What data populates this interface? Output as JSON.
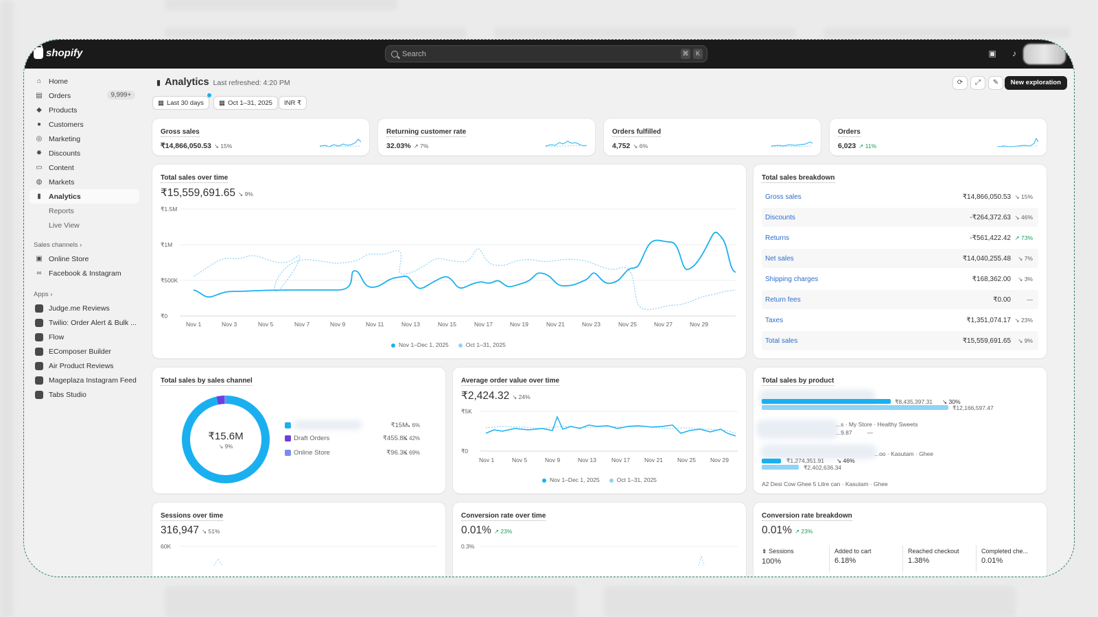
{
  "app": {
    "brand": "shopify"
  },
  "search": {
    "placeholder": "Search",
    "kbd1": "⌘",
    "kbd2": "K"
  },
  "sidebar": {
    "items": [
      {
        "label": "Home",
        "icon": "home-icon"
      },
      {
        "label": "Orders",
        "icon": "orders-icon",
        "badge": "9,999+"
      },
      {
        "label": "Products",
        "icon": "tag-icon"
      },
      {
        "label": "Customers",
        "icon": "person-icon"
      },
      {
        "label": "Marketing",
        "icon": "target-icon"
      },
      {
        "label": "Discounts",
        "icon": "discount-icon"
      },
      {
        "label": "Content",
        "icon": "content-icon"
      },
      {
        "label": "Markets",
        "icon": "globe-icon"
      },
      {
        "label": "Analytics",
        "icon": "chart-icon"
      },
      {
        "label": "Reports"
      },
      {
        "label": "Live View"
      }
    ],
    "sales_channels_label": "Sales channels",
    "channels": [
      "Online Store",
      "Facebook & Instagram"
    ],
    "apps_label": "Apps",
    "apps": [
      "Judge.me Reviews",
      "Twilio: Order Alert & Bulk ...",
      "Flow",
      "EComposer Builder",
      "Air Product Reviews",
      "Mageplaza Instagram Feed",
      "Tabs Studio"
    ]
  },
  "page": {
    "title": "Analytics",
    "subtitle": "Last refreshed: 4:20 PM",
    "new_button": "New exploration",
    "filters": [
      "Last 30 days",
      "Oct 1–31, 2025",
      "INR ₹"
    ]
  },
  "kpis": [
    {
      "title": "Gross sales",
      "value": "₹14,866,050.53",
      "change": "↘ 15%",
      "dir": "down"
    },
    {
      "title": "Returning customer rate",
      "value": "32.03%",
      "change": "↗ 7%",
      "dir": "flat"
    },
    {
      "title": "Orders fulfilled",
      "value": "4,752",
      "change": "↘ 6%",
      "dir": "down"
    },
    {
      "title": "Orders",
      "value": "6,023",
      "change": "↗ 11%",
      "dir": "up"
    }
  ],
  "total_sales": {
    "title": "Total sales over time",
    "value": "₹15,559,691.65",
    "change": "↘ 9%",
    "y_ticks": [
      "₹1.5M",
      "₹1M",
      "₹500K",
      "₹0"
    ],
    "x_ticks": [
      "Nov 1",
      "Nov 3",
      "Nov 5",
      "Nov 7",
      "Nov 9",
      "Nov 11",
      "Nov 13",
      "Nov 15",
      "Nov 17",
      "Nov 19",
      "Nov 21",
      "Nov 23",
      "Nov 25",
      "Nov 27",
      "Nov 29"
    ],
    "legend": [
      "Nov 1–Dec 1, 2025",
      "Oct 1–31, 2025"
    ]
  },
  "breakdown": {
    "title": "Total sales breakdown",
    "rows": [
      {
        "label": "Gross sales",
        "value": "₹14,866,050.53",
        "change": "↘ 15%",
        "dir": "down"
      },
      {
        "label": "Discounts",
        "value": "-₹264,372.63",
        "change": "↘ 46%",
        "dir": "down"
      },
      {
        "label": "Returns",
        "value": "-₹561,422.42",
        "change": "↗ 73%",
        "dir": "up"
      },
      {
        "label": "Net sales",
        "value": "₹14,040,255.48",
        "change": "↘ 7%",
        "dir": "down"
      },
      {
        "label": "Shipping charges",
        "value": "₹168,362.00",
        "change": "↘ 3%",
        "dir": "down"
      },
      {
        "label": "Return fees",
        "value": "₹0.00",
        "change": "—",
        "dir": "flat"
      },
      {
        "label": "Taxes",
        "value": "₹1,351,074.17",
        "change": "↘ 23%",
        "dir": "down"
      },
      {
        "label": "Total sales",
        "value": "₹15,559,691.65",
        "change": "↘ 9%",
        "dir": "down"
      }
    ]
  },
  "channel": {
    "title": "Total sales by sales channel",
    "center_value": "₹15.6M",
    "center_change": "↘ 9%",
    "items": [
      {
        "label": "",
        "value": "₹15M",
        "change": "↘ 6%",
        "color": "#1ab0f0"
      },
      {
        "label": "Draft Orders",
        "value": "₹455.8K",
        "change": "↘ 42%",
        "color": "#6d3fdc"
      },
      {
        "label": "Online Store",
        "value": "₹96.3K",
        "change": "↘ 69%",
        "color": "#7a8cf0"
      }
    ]
  },
  "aov": {
    "title": "Average order value over time",
    "value": "₹2,424.32",
    "change": "↘ 24%",
    "y_ticks": [
      "₹5K",
      "₹0"
    ],
    "x_ticks": [
      "Nov 1",
      "Nov 5",
      "Nov 9",
      "Nov 13",
      "Nov 17",
      "Nov 21",
      "Nov 25",
      "Nov 29"
    ],
    "legend": [
      "Nov 1–Dec 1, 2025",
      "Oct 1–31, 2025"
    ]
  },
  "by_product": {
    "title": "Total sales by product",
    "row1_value": "₹8,435,397.31",
    "row1_change": "↘ 30%",
    "row1_prev": "₹12,166,597.47",
    "row2_label": "...s · My Store · Healthy Sweets",
    "row2_value": "...9.87",
    "row2_change": "—",
    "row3_label": "...oo · Kasutam · Ghee",
    "row3_value": "₹1,274,351.91",
    "row3_change": "↘ 46%",
    "row3_prev": "₹2,402,636.34",
    "row4_label": "A2 Desi Cow Ghee 5 Litre can · Kasutam · Ghee"
  },
  "sessions": {
    "title": "Sessions over time",
    "value": "316,947",
    "change": "↘ 51%",
    "y_tick": "60K"
  },
  "conversion": {
    "title": "Conversion rate over time",
    "value": "0.01%",
    "change": "↗ 23%",
    "y_tick": "0.3%"
  },
  "conv_breakdown": {
    "title": "Conversion rate breakdown",
    "value": "0.01%",
    "change": "↗ 23%",
    "steps": [
      {
        "label": "Sessions",
        "pct": "100%"
      },
      {
        "label": "Added to cart",
        "pct": "6.18%"
      },
      {
        "label": "Reached checkout",
        "pct": "1.38%"
      },
      {
        "label": "Completed che...",
        "pct": "0.01%"
      }
    ]
  },
  "colors": {
    "primary": "#1ab0f0",
    "previous": "#8fd3f5",
    "link": "#2c6ecb",
    "up": "#13a35f"
  }
}
